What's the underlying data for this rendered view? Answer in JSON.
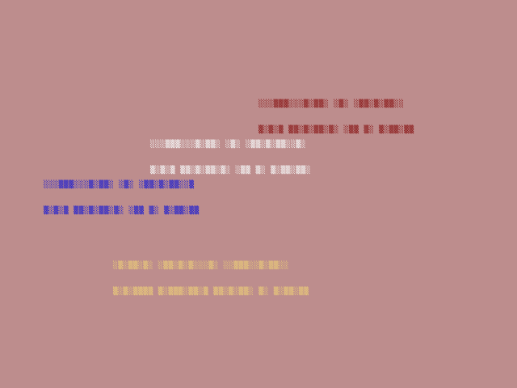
{
  "background_color": "#bd8d8d",
  "blocks": [
    {
      "color": "#8b1a1a",
      "line1": "░░░▒▒▒░░░▒░▒▒░ ░▒░ ░▒▒░▒░▒▒░░",
      "line2": "▒░▒░▒ ▒▒░▒░▒▒░▒░ ░▒▒ ▒░ ▒░▒▒░▒▒"
    },
    {
      "color": "#f4f4f4",
      "line1": "░░░▒▒▒░░░▒░▒▒░ ░▒░ ░▒▒░▒░▒▒░░▒░",
      "line2": "▒░▒░▒ ▒▒░▒░▒▒░▒░ ░▒▒ ▒░ ▒░▒▒░▒▒░"
    },
    {
      "color": "#2020d0",
      "line1": "░░░▒▒▒░░░▒░▒▒░ ░▒░ ░▒▒░▒░▒▒░░▒",
      "line2": "▒░▒░▒ ▒▒░▒░▒▒░▒░ ░▒▒ ▒░ ▒░▒▒░▒▒"
    },
    {
      "color": "#e8c87a",
      "line1": "░▒░▒▒░▒░ ░▒▒░▒░▒░░░▒░ ░░▒▒▒░░▒░▒▒░░",
      "line2": "▒░▒░▒▒▒▒ ▒░▒▒▒░▒▒░▒ ▒▒░▒░▒▒░ ▒░ ▒░▒▒░▒▒"
    }
  ]
}
